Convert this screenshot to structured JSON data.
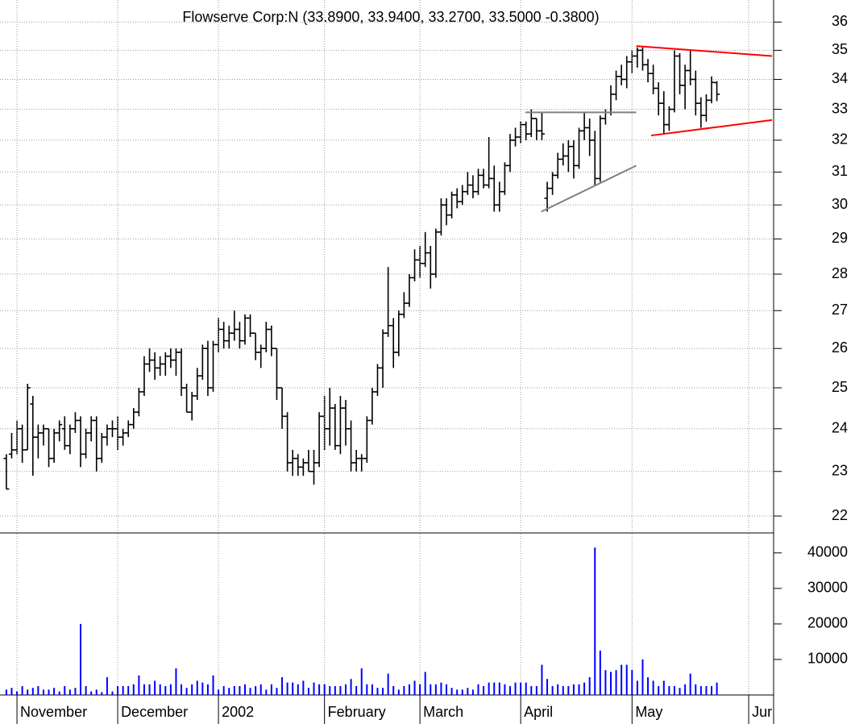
{
  "chart_data": [
    {
      "type": "ohlc",
      "title": "Flowserve Corp:N (33.8900, 33.9400, 33.2700, 33.5000 -0.3800)",
      "color": "#000000",
      "log": true,
      "grid": true,
      "xlim": [
        -1.2,
        144.7
      ],
      "ylim": [
        21.65,
        36.8
      ],
      "yticks": [
        22,
        23,
        24,
        25,
        26,
        27,
        28,
        29,
        30,
        31,
        32,
        33,
        34,
        35,
        36
      ],
      "open": [
        23.3,
        23.4,
        23.5,
        24.0,
        23.5,
        24.6,
        23.8,
        23.9,
        24.0,
        23.3,
        23.9,
        24.0,
        23.6,
        24.0,
        24.2,
        23.4,
        23.9,
        24.2,
        23.3,
        23.8,
        24.0,
        24.0,
        23.8,
        23.9,
        24.1,
        24.4,
        24.9,
        25.6,
        25.7,
        25.5,
        25.6,
        25.8,
        25.7,
        25.9,
        25.0,
        24.4,
        24.8,
        25.3,
        26.0,
        25.0,
        26.1,
        26.5,
        26.2,
        26.4,
        26.5,
        26.2,
        26.8,
        26.4,
        25.9,
        26.0,
        26.5,
        26.0,
        25.0,
        24.3,
        23.2,
        23.3,
        23.1,
        23.2,
        23.0,
        23.2,
        24.3,
        24.0,
        24.5,
        23.6,
        24.5,
        24.0,
        23.2,
        23.3,
        23.3,
        24.2,
        24.9,
        25.5,
        26.4,
        26.6,
        25.9,
        26.9,
        27.2,
        27.9,
        28.4,
        28.3,
        28.6,
        28.0,
        29.2,
        30.0,
        29.7,
        30.3,
        30.1,
        30.4,
        30.6,
        30.4,
        30.9,
        30.6,
        30.8,
        30.0,
        30.4,
        31.2,
        32.0,
        32.1,
        32.5,
        32.2,
        32.7,
        32.3,
        30.2,
        30.5,
        30.9,
        31.4,
        31.5,
        31.8,
        31.2,
        32.3,
        32.4,
        32.0,
        30.8,
        32.7,
        32.9,
        33.5,
        34.1,
        34.0,
        34.6,
        34.8,
        35.0,
        34.5,
        34.2,
        33.7,
        33.2,
        32.5,
        33.0,
        34.8,
        33.8,
        34.3,
        34.0,
        33.2,
        32.8,
        33.3,
        33.89
      ],
      "high": [
        23.4,
        23.9,
        24.2,
        24.1,
        25.1,
        24.8,
        24.1,
        24.1,
        24.0,
        24.0,
        24.2,
        24.3,
        24.1,
        24.4,
        24.3,
        24.0,
        24.3,
        24.3,
        23.9,
        24.1,
        24.2,
        24.3,
        24.0,
        24.2,
        24.5,
        25.0,
        25.8,
        26.0,
        25.9,
        25.8,
        25.9,
        26.0,
        26.0,
        26.0,
        25.1,
        24.9,
        25.5,
        26.1,
        26.2,
        26.2,
        26.8,
        26.7,
        26.6,
        27.0,
        26.7,
        26.9,
        26.9,
        26.4,
        26.1,
        26.7,
        26.6,
        26.0,
        25.0,
        24.4,
        23.5,
        23.4,
        23.3,
        23.5,
        23.5,
        24.4,
        24.8,
        25.0,
        24.6,
        24.8,
        24.7,
        24.2,
        23.5,
        23.4,
        24.3,
        25.0,
        25.6,
        26.5,
        28.2,
        26.8,
        27.0,
        27.5,
        28.0,
        28.7,
        28.8,
        29.2,
        28.8,
        29.3,
        30.2,
        30.2,
        30.4,
        30.5,
        30.6,
        31.0,
        30.9,
        31.1,
        31.1,
        32.1,
        31.2,
        30.7,
        31.3,
        32.2,
        32.4,
        32.6,
        32.6,
        33.0,
        32.7,
        32.9,
        30.7,
        31.0,
        31.6,
        31.9,
        32.0,
        32.0,
        32.4,
        32.9,
        32.7,
        32.3,
        32.8,
        33.0,
        33.8,
        34.3,
        34.5,
        34.8,
        35.0,
        35.1,
        35.1,
        34.7,
        34.5,
        33.9,
        33.6,
        33.1,
        35.0,
        34.9,
        34.5,
        35.0,
        34.3,
        33.4,
        33.5,
        34.1,
        33.94
      ],
      "low": [
        22.6,
        23.3,
        23.4,
        23.2,
        23.5,
        22.9,
        23.3,
        23.6,
        23.1,
        23.2,
        23.7,
        23.5,
        23.4,
        23.9,
        23.1,
        23.3,
        23.7,
        23.0,
        23.2,
        23.6,
        23.8,
        23.5,
        23.6,
        23.8,
        24.0,
        24.3,
        24.8,
        25.4,
        25.2,
        25.3,
        25.3,
        25.5,
        25.3,
        24.8,
        24.4,
        24.2,
        24.7,
        25.2,
        24.8,
        24.9,
        25.9,
        26.0,
        26.0,
        26.2,
        26.0,
        26.1,
        26.3,
        25.7,
        25.5,
        25.9,
        25.8,
        24.7,
        24.0,
        23.0,
        22.9,
        22.9,
        22.9,
        23.0,
        22.7,
        23.1,
        23.5,
        23.6,
        23.5,
        23.4,
        23.6,
        23.0,
        23.0,
        23.0,
        23.2,
        24.1,
        24.8,
        25.0,
        26.3,
        25.5,
        25.8,
        26.8,
        27.1,
        27.8,
        27.9,
        28.2,
        27.6,
        27.9,
        29.1,
        29.4,
        29.6,
        29.9,
        30.0,
        30.3,
        30.2,
        30.3,
        30.5,
        30.5,
        29.8,
        29.8,
        30.3,
        31.0,
        31.8,
        31.9,
        32.0,
        32.1,
        32.0,
        32.0,
        29.8,
        30.3,
        30.8,
        31.2,
        31.0,
        30.8,
        31.1,
        32.0,
        31.5,
        30.6,
        30.7,
        32.5,
        32.8,
        33.3,
        33.8,
        33.7,
        34.2,
        34.4,
        34.3,
        33.9,
        33.5,
        32.8,
        32.2,
        32.3,
        32.9,
        33.5,
        33.0,
        33.8,
        32.8,
        32.4,
        32.6,
        33.2,
        33.27
      ],
      "close": [
        22.6,
        23.5,
        24.0,
        23.5,
        25.0,
        23.8,
        23.9,
        24.0,
        23.3,
        23.9,
        24.1,
        23.6,
        24.0,
        24.2,
        23.4,
        23.9,
        24.2,
        23.3,
        23.8,
        24.0,
        24.0,
        23.8,
        23.9,
        24.1,
        24.4,
        24.9,
        25.6,
        25.7,
        25.5,
        25.6,
        25.8,
        25.7,
        25.9,
        25.0,
        24.4,
        24.8,
        25.3,
        26.0,
        25.0,
        26.1,
        26.5,
        26.2,
        26.4,
        26.5,
        26.2,
        26.8,
        26.4,
        25.9,
        26.0,
        26.5,
        26.0,
        25.0,
        24.3,
        23.2,
        23.3,
        23.1,
        23.2,
        23.0,
        23.2,
        24.3,
        24.0,
        24.5,
        23.6,
        24.5,
        24.0,
        23.2,
        23.3,
        23.3,
        24.2,
        24.9,
        25.5,
        26.4,
        26.6,
        25.9,
        26.9,
        27.2,
        27.9,
        28.4,
        28.3,
        28.6,
        28.0,
        29.2,
        30.0,
        29.7,
        30.3,
        30.1,
        30.4,
        30.6,
        30.4,
        30.9,
        30.6,
        30.8,
        30.0,
        30.4,
        31.2,
        32.0,
        32.1,
        32.5,
        32.2,
        32.7,
        32.3,
        32.2,
        30.5,
        30.9,
        31.4,
        31.5,
        31.8,
        31.2,
        32.3,
        32.4,
        32.0,
        30.8,
        32.7,
        32.9,
        33.5,
        34.1,
        34.0,
        34.6,
        34.8,
        35.0,
        34.5,
        34.2,
        33.7,
        33.2,
        32.5,
        33.0,
        34.8,
        33.8,
        34.3,
        34.0,
        33.2,
        32.8,
        33.3,
        33.9,
        33.5
      ],
      "trendlines": [
        {
          "color": "#ff0000",
          "points": [
            [
              118.8,
              35.15
            ],
            [
              144.4,
              34.8
            ]
          ]
        },
        {
          "color": "#ff0000",
          "points": [
            [
              121.6,
              32.15
            ],
            [
              144.4,
              32.65
            ]
          ]
        },
        {
          "color": "#808080",
          "points": [
            [
              97.9,
              32.9
            ],
            [
              118.8,
              32.9
            ]
          ]
        },
        {
          "color": "#808080",
          "points": [
            [
              100.9,
              29.8
            ],
            [
              118.8,
              31.2
            ]
          ]
        }
      ]
    },
    {
      "type": "bar",
      "color": "#0000ff",
      "grid": false,
      "xlim": [
        -1.2,
        144.7
      ],
      "ylim": [
        0,
        45400
      ],
      "yticks": [
        10000,
        20000,
        30000,
        40000
      ],
      "xticks": [
        {
          "value": 2,
          "label": "November"
        },
        {
          "value": 21,
          "label": "December"
        },
        {
          "value": 40,
          "label": "2002"
        },
        {
          "value": 60,
          "label": "February"
        },
        {
          "value": 78,
          "label": "March"
        },
        {
          "value": 97,
          "label": "April"
        },
        {
          "value": 118,
          "label": "May"
        },
        {
          "value": 140,
          "label": "Jur"
        }
      ],
      "values": [
        1500,
        2000,
        1000,
        2500,
        1500,
        2000,
        2500,
        1500,
        1500,
        2000,
        1000,
        2500,
        1500,
        2000,
        20000,
        2500,
        1000,
        1500,
        800,
        5000,
        1000,
        2500,
        2500,
        2500,
        3000,
        5500,
        3000,
        3000,
        4000,
        3000,
        2500,
        3000,
        7500,
        3000,
        2000,
        3000,
        4000,
        3500,
        3000,
        5500,
        1500,
        2500,
        2000,
        2500,
        2500,
        3000,
        2000,
        2500,
        3000,
        1500,
        3000,
        2000,
        5000,
        3500,
        3500,
        3000,
        4000,
        2000,
        3500,
        3000,
        3000,
        2500,
        2500,
        2500,
        3000,
        4500,
        2500,
        7500,
        3000,
        3000,
        2000,
        2000,
        6000,
        2500,
        1500,
        2500,
        3000,
        4000,
        3000,
        6500,
        3000,
        3000,
        3500,
        3000,
        2000,
        1500,
        1500,
        2000,
        1500,
        3000,
        2500,
        3500,
        3500,
        3500,
        3000,
        2500,
        3500,
        3500,
        3500,
        2500,
        2500,
        8500,
        4500,
        2500,
        3000,
        2500,
        2500,
        3000,
        3000,
        3500,
        5000,
        41500,
        12500,
        7000,
        6500,
        7000,
        8500,
        8500,
        7000,
        4000,
        10000,
        5000,
        4000,
        2500,
        4000,
        2500,
        2500,
        2000,
        3000,
        6000,
        3000,
        2500,
        2500,
        2500,
        3500
      ]
    }
  ]
}
